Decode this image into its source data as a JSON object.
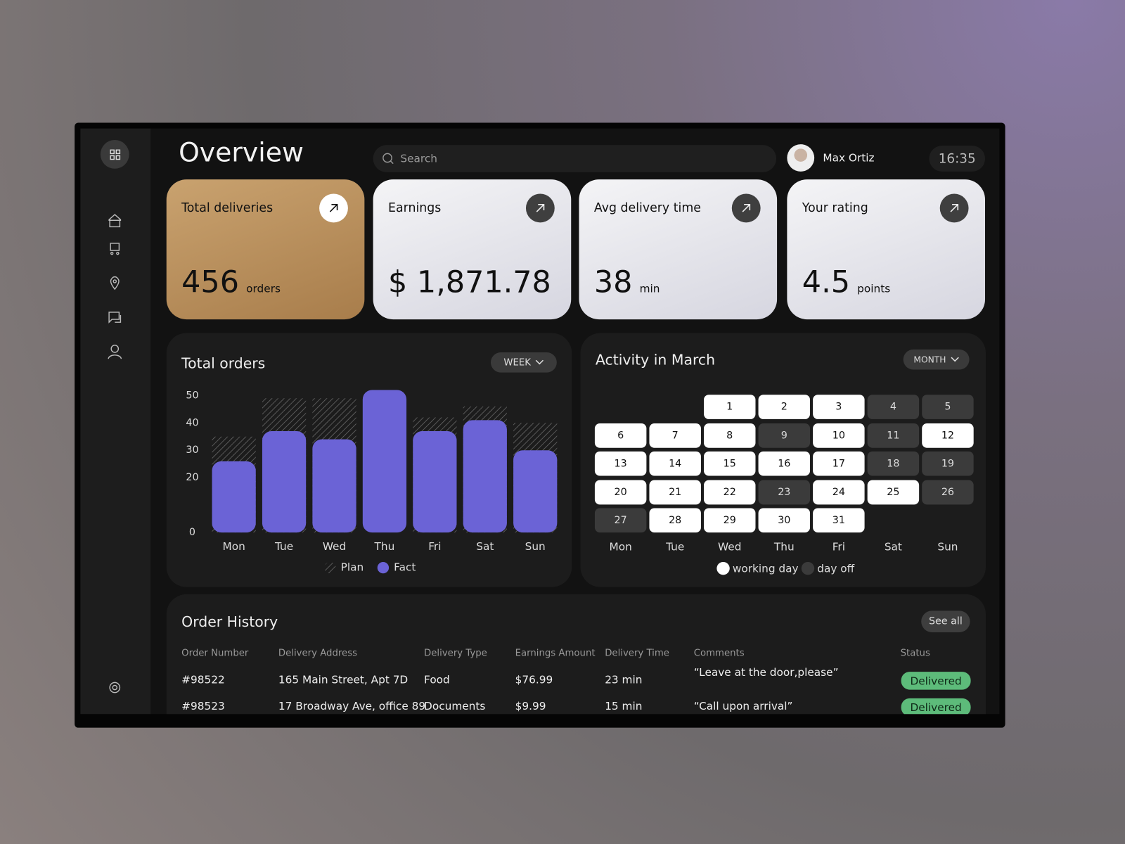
{
  "header": {
    "title": "Overview",
    "search_placeholder": "Search",
    "user_name": "Max Ortiz",
    "time": "16:35"
  },
  "cards": [
    {
      "title": "Total deliveries",
      "value": "456",
      "unit": "orders"
    },
    {
      "title": "Earnings",
      "value": "$ 1,871.78"
    },
    {
      "title": "Avg delivery time",
      "value": "38",
      "unit": "min"
    },
    {
      "title": "Your rating",
      "value": "4.5",
      "unit": "points"
    }
  ],
  "chart_data": {
    "type": "bar",
    "title": "Total orders",
    "period": "WEEK",
    "categories": [
      "Mon",
      "Tue",
      "Wed",
      "Thu",
      "Fri",
      "Sat",
      "Sun"
    ],
    "series": [
      {
        "name": "Plan",
        "color": "#6a6a6a",
        "pattern": "hatch",
        "values": [
          35,
          49,
          49,
          null,
          42,
          46,
          40
        ]
      },
      {
        "name": "Fact",
        "color": "#6b63d6",
        "values": [
          26,
          37,
          34,
          52,
          37,
          41,
          30
        ]
      }
    ],
    "ylim": [
      0,
      55
    ],
    "yticks": [
      0,
      20,
      30,
      40,
      50
    ],
    "grid": false
  },
  "calendar": {
    "title": "Activity in March",
    "period": "MONTH",
    "weekdays": [
      "Mon",
      "Tue",
      "Wed",
      "Thu",
      "Fri",
      "Sat",
      "Sun"
    ],
    "days": [
      {
        "day": 1,
        "status": "working"
      },
      {
        "day": 2,
        "status": "working"
      },
      {
        "day": 3,
        "status": "working"
      },
      {
        "day": 4,
        "status": "off"
      },
      {
        "day": 5,
        "status": "off"
      },
      {
        "day": 6,
        "status": "working"
      },
      {
        "day": 7,
        "status": "working"
      },
      {
        "day": 8,
        "status": "working"
      },
      {
        "day": 9,
        "status": "off"
      },
      {
        "day": 10,
        "status": "working"
      },
      {
        "day": 11,
        "status": "off"
      },
      {
        "day": 12,
        "status": "working"
      },
      {
        "day": 13,
        "status": "working"
      },
      {
        "day": 14,
        "status": "working"
      },
      {
        "day": 15,
        "status": "working"
      },
      {
        "day": 16,
        "status": "working"
      },
      {
        "day": 17,
        "status": "working"
      },
      {
        "day": 18,
        "status": "off"
      },
      {
        "day": 19,
        "status": "off"
      },
      {
        "day": 20,
        "status": "working"
      },
      {
        "day": 21,
        "status": "working"
      },
      {
        "day": 22,
        "status": "working"
      },
      {
        "day": 23,
        "status": "off"
      },
      {
        "day": 24,
        "status": "working"
      },
      {
        "day": 25,
        "status": "working"
      },
      {
        "day": 26,
        "status": "off"
      },
      {
        "day": 27,
        "status": "off"
      },
      {
        "day": 28,
        "status": "working"
      },
      {
        "day": 29,
        "status": "working"
      },
      {
        "day": 30,
        "status": "working"
      },
      {
        "day": 31,
        "status": "working"
      }
    ],
    "legend": [
      {
        "status": "working",
        "label": "working day"
      },
      {
        "status": "off",
        "label": "day off"
      }
    ]
  },
  "order_history": {
    "title": "Order History",
    "action": "See all",
    "columns": [
      "Order Number",
      "Delivery Address",
      "Delivery Type",
      "Earnings Amount",
      "Delivery Time",
      "Comments",
      "Status"
    ],
    "rows": [
      [
        "#98522",
        "165 Main Street, Apt 7D",
        "Food",
        "$76.99",
        "23 min",
        "“Leave at the door,please”",
        "Delivered"
      ],
      [
        "#98523",
        "17 Broadway Ave, office 89",
        "Documents",
        "$9.99",
        "15 min",
        "“Call upon arrival”",
        "Delivered"
      ]
    ]
  }
}
